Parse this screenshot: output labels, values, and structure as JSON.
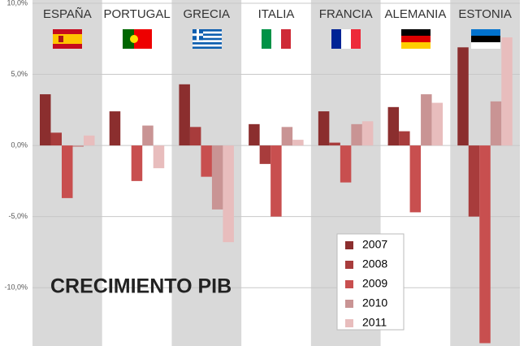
{
  "chart_data": {
    "type": "bar",
    "title": "CRECIMIENTO PIB",
    "categories": [
      "ESPAÑA",
      "PORTUGAL",
      "GRECIA",
      "ITALIA",
      "FRANCIA",
      "ALEMANIA",
      "ESTONIA"
    ],
    "series": [
      {
        "name": "2007",
        "color": "#8b2e2e",
        "values": [
          3.6,
          2.4,
          4.3,
          1.5,
          2.4,
          2.7,
          6.9
        ]
      },
      {
        "name": "2008",
        "color": "#a83c3c",
        "values": [
          0.9,
          0,
          1.3,
          -1.3,
          0.2,
          1.0,
          -5.0
        ]
      },
      {
        "name": "2009",
        "color": "#c84f4f",
        "values": [
          -3.7,
          -2.5,
          -2.2,
          -5.0,
          -2.6,
          -4.7,
          -13.9
        ]
      },
      {
        "name": "2010",
        "color": "#c99494",
        "values": [
          -0.1,
          1.4,
          -4.5,
          1.3,
          1.5,
          3.6,
          3.1
        ]
      },
      {
        "name": "2011",
        "color": "#e8bdbd",
        "values": [
          0.7,
          -1.6,
          -6.8,
          0.4,
          1.7,
          3.0,
          7.6
        ]
      }
    ],
    "ylim": [
      -14.1,
      10
    ],
    "yticks": [
      {
        "value": 10,
        "label": "10,0%"
      },
      {
        "value": 5,
        "label": "5,0%"
      },
      {
        "value": 0,
        "label": "0,0%"
      },
      {
        "value": -5,
        "label": "-5,0%"
      },
      {
        "value": -10,
        "label": "-10,0%"
      }
    ],
    "grid": true
  }
}
